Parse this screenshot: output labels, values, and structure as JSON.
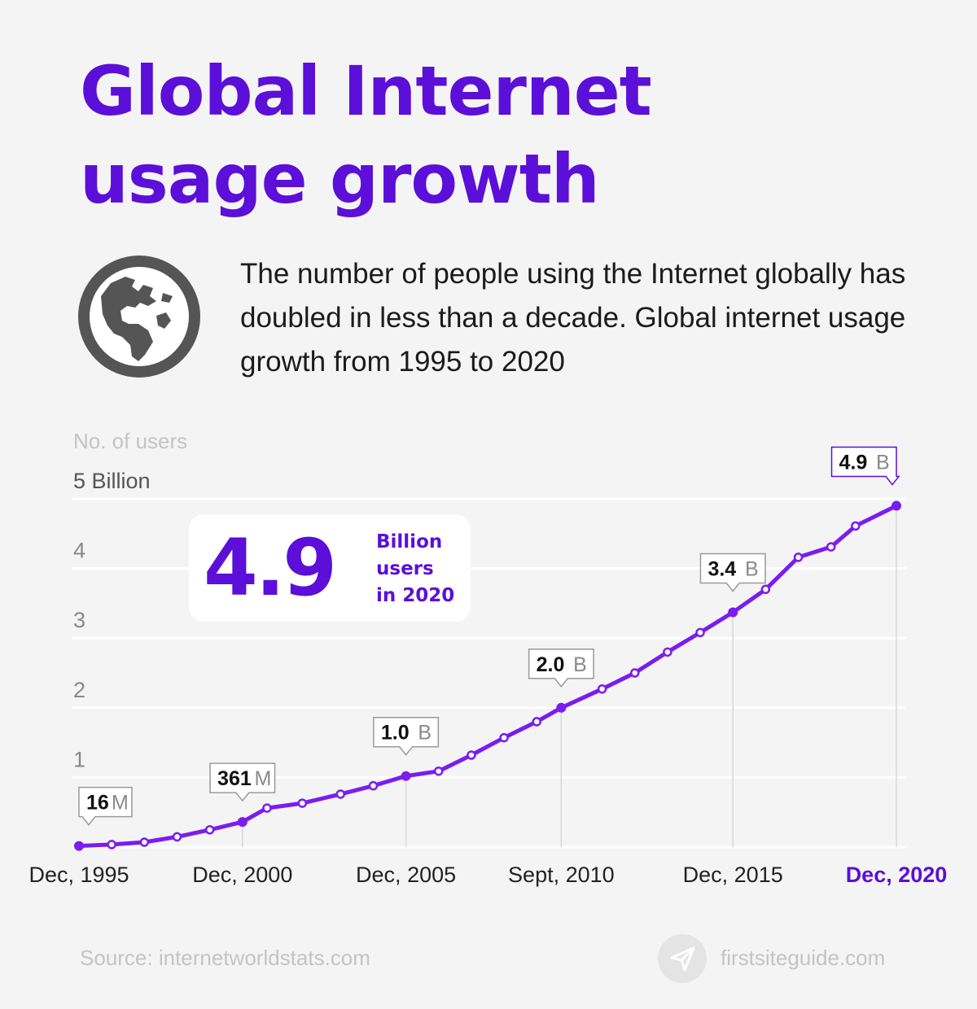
{
  "header": {
    "title_line1": "Global Internet",
    "title_line2": "usage growth",
    "subtitle": "The number of people using the Internet globally has doubled in less than a decade. Global internet usage growth from 1995 to 2020"
  },
  "highlight": {
    "value": "4.9",
    "line1": "Billion",
    "line2": "users",
    "line3": "in 2020"
  },
  "icons": {
    "globe": "globe-icon",
    "logo": "paper-plane-icon"
  },
  "colors": {
    "accent": "#5b0fd8",
    "line": "#7b1cf0",
    "text": "#1b1b1b",
    "muted": "#c4c4c4"
  },
  "chart_data": {
    "type": "line",
    "ylabel": "No. of users",
    "ytick_labels": [
      "5 Billion",
      "4",
      "3",
      "2",
      "1"
    ],
    "ytick_values": [
      5,
      4,
      3,
      2,
      1
    ],
    "ylim": [
      0,
      5
    ],
    "xlim": [
      1995.92,
      2020.92
    ],
    "grid": true,
    "x_tick_labels": [
      {
        "label": "Dec, 1995",
        "x": 1995.92,
        "highlight": false
      },
      {
        "label": "Dec, 2000",
        "x": 2000.92,
        "highlight": false
      },
      {
        "label": "Dec, 2005",
        "x": 2005.92,
        "highlight": false
      },
      {
        "label": "Sept, 2010",
        "x": 2010.67,
        "highlight": false
      },
      {
        "label": "Dec, 2015",
        "x": 2015.92,
        "highlight": false
      },
      {
        "label": "Dec, 2020",
        "x": 2020.92,
        "highlight": true
      }
    ],
    "series": [
      {
        "points": [
          [
            1995.92,
            0.016
          ],
          [
            1996.92,
            0.036
          ],
          [
            1997.92,
            0.07
          ],
          [
            1998.92,
            0.147
          ],
          [
            1999.92,
            0.248
          ],
          [
            2000.92,
            0.361
          ],
          [
            2001.67,
            0.56
          ],
          [
            2002.75,
            0.63
          ],
          [
            2003.92,
            0.76
          ],
          [
            2004.92,
            0.88
          ],
          [
            2005.92,
            1.02
          ],
          [
            2006.92,
            1.09
          ],
          [
            2007.92,
            1.32
          ],
          [
            2008.92,
            1.57
          ],
          [
            2009.92,
            1.8
          ],
          [
            2010.67,
            2.0
          ],
          [
            2011.92,
            2.27
          ],
          [
            2012.92,
            2.5
          ],
          [
            2013.92,
            2.8
          ],
          [
            2014.92,
            3.08
          ],
          [
            2015.92,
            3.37
          ],
          [
            2016.92,
            3.7
          ],
          [
            2017.92,
            4.16
          ],
          [
            2018.92,
            4.31
          ],
          [
            2019.67,
            4.61
          ],
          [
            2020.92,
            4.9
          ]
        ]
      }
    ],
    "emphasized_x": [
      1995.92,
      2000.92,
      2005.92,
      2010.67,
      2015.92,
      2020.92
    ],
    "annotations": [
      {
        "x": 1995.92,
        "y": 0.016,
        "value": "16",
        "unit": "M",
        "highlight": false
      },
      {
        "x": 2000.92,
        "y": 0.361,
        "value": "361",
        "unit": "M",
        "highlight": false
      },
      {
        "x": 2005.92,
        "y": 1.02,
        "value": "1.0",
        "unit": "B",
        "highlight": false
      },
      {
        "x": 2010.67,
        "y": 2.0,
        "value": "2.0",
        "unit": "B",
        "highlight": false
      },
      {
        "x": 2015.92,
        "y": 3.37,
        "value": "3.4",
        "unit": "B",
        "highlight": false
      },
      {
        "x": 2020.92,
        "y": 4.9,
        "value": "4.9",
        "unit": "B",
        "highlight": true
      }
    ]
  },
  "footer": {
    "source": "Source: internetworldstats.com",
    "brand": "firstsiteguide.com"
  }
}
